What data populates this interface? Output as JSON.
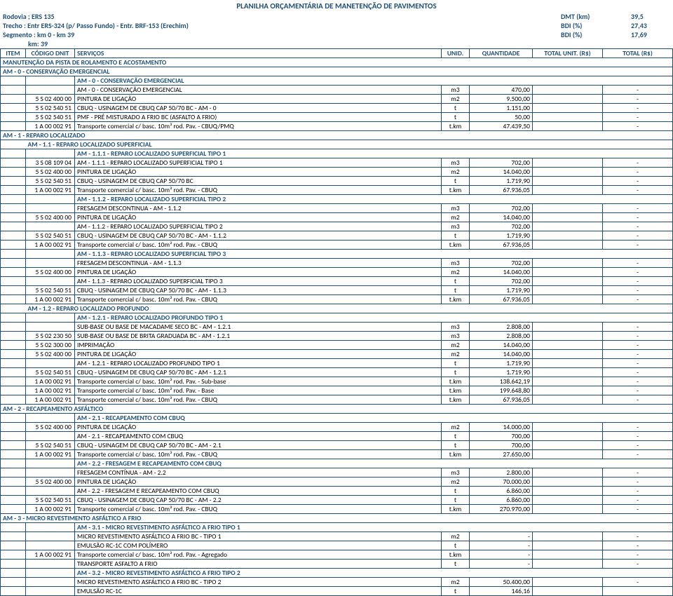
{
  "title": "PLANILHA ORÇAMENTÁRIA DE MANETENÇÃO DE PAVIMENTOS",
  "header": {
    "rodovia": "Rodovia ; ERS 135",
    "trecho": "Trecho : Entr ERS-324 (p/ Passo Fundo) - Entr. BRF-153 (Erechim)",
    "segmento": "Segmento : km 0 - km 39",
    "km": "km: 39",
    "dmt_lbl": "DMT (km)",
    "dmt_val": "39,5",
    "bdi1_lbl": "BDI (%)",
    "bdi1_val": "27,43",
    "bdi2_lbl": "BDI (%)",
    "bdi2_val": "17,69"
  },
  "th": {
    "item": "ITEM",
    "codigo": "CÓDIGO DNIT",
    "serv": "SERVIÇOS",
    "unid": "UNID.",
    "qty": "QUANTIDADE",
    "unit": "TOTAL UNIT. (R$)",
    "total": "TOTAL (R$)"
  },
  "rows": [
    {
      "t": "sec",
      "span": 7,
      "txt": "MANUTENÇÃO DA PISTA DE ROLAMENTO E ACOSTAMENTO"
    },
    {
      "t": "sec",
      "span": 7,
      "txt": "AM - 0 - CONSERVAÇÃO EMERGENCIAL"
    },
    {
      "t": "sub",
      "txt": "AM - 0 - CONSERVAÇÃO EMERGENCIAL"
    },
    {
      "t": "d",
      "code": "",
      "serv": "AM - 0 - CONSERVAÇÃO EMERGENCIAL",
      "u": "m3",
      "q": "470,00",
      "ut": "",
      "tot": "-"
    },
    {
      "t": "d",
      "code": "5 S 02 400 00",
      "serv": "PINTURA DE LIGAÇÃO",
      "u": "m2",
      "q": "9.500,00",
      "ut": "",
      "tot": "-"
    },
    {
      "t": "d",
      "code": "5 S 02 540 51",
      "serv": "CBUQ - USINAGEM DE CBUQ CAP 50/70 BC - AM - 0",
      "u": "t",
      "q": "1.151,00",
      "ut": "",
      "tot": "-"
    },
    {
      "t": "d",
      "code": "5 S 02 540 51",
      "serv": "PMF - PRÉ MISTURADO A FRIO BC (ASFALTO A FRIO)",
      "u": "t",
      "q": "50,00",
      "ut": "",
      "tot": "-"
    },
    {
      "t": "d",
      "code": "1 A 00 002 91",
      "serv": "Transporte comercial c/ basc. 10m³ rod. Pav. - CBUQ/PMQ",
      "u": "t.km",
      "q": "47.439,50",
      "ut": "",
      "tot": "-"
    },
    {
      "t": "sec",
      "span": 7,
      "txt": "AM - 1 - REPARO LOCALIZADO"
    },
    {
      "t": "sub2",
      "txt": "AM - 1.1 - REPARO LOCALIZADO SUPERFICIAL"
    },
    {
      "t": "sub",
      "txt": "AM - 1.1.1 - REPARO LOCALIZADO SUPERFICIAL TIPO 1"
    },
    {
      "t": "d",
      "code": "3 S 08 109 04",
      "serv": "AM - 1.1.1 - REPARO LOCALIZADO SUPERFICIAL TIPO 1",
      "u": "m3",
      "q": "702,00",
      "ut": "",
      "tot": "-"
    },
    {
      "t": "d",
      "code": "5 S 02 400 00",
      "serv": "PINTURA DE LIGAÇÃO",
      "u": "m2",
      "q": "14.040,00",
      "ut": "",
      "tot": "-"
    },
    {
      "t": "d",
      "code": "5 S 02 540 51",
      "serv": "CBUQ - USINAGEM DE CBUQ CAP 50/70 BC",
      "u": "t",
      "q": "1.719,90",
      "ut": "",
      "tot": "-"
    },
    {
      "t": "d",
      "code": "1 A 00 002 91",
      "serv": "Transporte comercial c/ basc. 10m³ rod. Pav. - CBUQ",
      "u": "t.km",
      "q": "67.936,05",
      "ut": "",
      "tot": "-"
    },
    {
      "t": "sub",
      "txt": "AM - 1.1.2 - REPARO LOCALIZADO SUPERFICIAL TIPO 2"
    },
    {
      "t": "d",
      "code": "",
      "serv": "FRESAGEM DESCONTINUA - AM - 1.1.2",
      "u": "m3",
      "q": "702,00",
      "ut": "",
      "tot": "-"
    },
    {
      "t": "d",
      "code": "5 S 02 400 00",
      "serv": "PINTURA DE LIGAÇÃO",
      "u": "m2",
      "q": "14.040,00",
      "ut": "",
      "tot": "-"
    },
    {
      "t": "d",
      "code": "",
      "serv": "AM - 1.1.2 - REPARO LOCALIZADO SUPERFICIAL TIPO 2",
      "u": "m3",
      "q": "702,00",
      "ut": "",
      "tot": "-"
    },
    {
      "t": "d",
      "code": "5 S 02 540 51",
      "serv": "CBUQ - USINAGEM DE CBUQ CAP 50/70 BC - AM - 1.1.2",
      "u": "t",
      "q": "1.719,90",
      "ut": "",
      "tot": "-"
    },
    {
      "t": "d",
      "code": "1 A 00 002 91",
      "serv": "Transporte comercial c/ basc. 10m³ rod. Pav. - CBUQ",
      "u": "t.km",
      "q": "67.936,05",
      "ut": "",
      "tot": "-"
    },
    {
      "t": "sub",
      "txt": "AM - 1.1.3 - REPARO LOCALIZADO SUPERFICIAL TIPO 3"
    },
    {
      "t": "d",
      "code": "",
      "serv": "FRESAGEM DESCONTINUA - AM - 1.1.3",
      "u": "m3",
      "q": "702,00",
      "ut": "",
      "tot": "-"
    },
    {
      "t": "d",
      "code": "5 S 02 400 00",
      "serv": "PINTURA DE LIGAÇÃO",
      "u": "m2",
      "q": "14.040,00",
      "ut": "",
      "tot": "-"
    },
    {
      "t": "d",
      "code": "",
      "serv": "AM - 1.1.3 - REPARO LOCALIZADO SUPERFICIAL TIPO 3",
      "u": "t",
      "q": "702,00",
      "ut": "",
      "tot": "-"
    },
    {
      "t": "d",
      "code": "5 S 02 540 51",
      "serv": "CBUQ - USINAGEM DE CBUQ CAP 50/70 BC - AM - 1.1.3",
      "u": "t",
      "q": "1.719,90",
      "ut": "",
      "tot": "-"
    },
    {
      "t": "d",
      "code": "1 A 00 002 91",
      "serv": "Transporte comercial c/ basc. 10m³ rod. Pav. - CBUQ",
      "u": "t.km",
      "q": "67.936,05",
      "ut": "",
      "tot": "-"
    },
    {
      "t": "sub2",
      "txt": "AM - 1.2 - REPARO LOCALIZADO PROFUNDO"
    },
    {
      "t": "sub",
      "txt": "AM - 1.2.1 - REPARO LOCALIZADO PROFUNDO TIPO 1"
    },
    {
      "t": "d",
      "code": "",
      "serv": "SUB-BASE OU BASE DE MACADAME SECO BC - AM - 1.2.1",
      "u": "m3",
      "q": "2.808,00",
      "ut": "",
      "tot": "-"
    },
    {
      "t": "d",
      "code": "5 S 02 230 50",
      "serv": "SUB-BASE OU BASE DE BRITA GRADUADA BC - AM - 1.2.1",
      "u": "m3",
      "q": "2.808,00",
      "ut": "",
      "tot": "-"
    },
    {
      "t": "d",
      "code": "5 S 02 300 00",
      "serv": "IMPRIMAÇÃO",
      "u": "m2",
      "q": "14.040,00",
      "ut": "",
      "tot": "-"
    },
    {
      "t": "d",
      "code": "5 S 02 400 00",
      "serv": "PINTURA DE LIGAÇÃO",
      "u": "m2",
      "q": "14.040,00",
      "ut": "",
      "tot": "-"
    },
    {
      "t": "d",
      "code": "",
      "serv": "AM - 1.2.1 - REPARO LOCALIZADO PROFUNDO TIPO 1",
      "u": "t",
      "q": "1.719,90",
      "ut": "",
      "tot": "-"
    },
    {
      "t": "d",
      "code": "5 S 02 540 51",
      "serv": "CBUQ - USINAGEM DE CBUQ CAP 50/70 BC - AM - 1.2.1",
      "u": "t",
      "q": "1.719,90",
      "ut": "",
      "tot": "-"
    },
    {
      "t": "d",
      "code": "1 A 00 002 91",
      "serv": "Transporte comercial c/ basc. 10m³ rod. Pav. - Sub-base",
      "u": "t.km",
      "q": "138.642,19",
      "ut": "",
      "tot": "-"
    },
    {
      "t": "d",
      "code": "1 A 00 002 91",
      "serv": "Transporte comercial c/ basc. 10m³ rod. Pav. - Base",
      "u": "t.km",
      "q": "199.648,80",
      "ut": "",
      "tot": "-"
    },
    {
      "t": "d",
      "code": "1 A 00 002 91",
      "serv": "Transporte comercial c/ basc. 10m³ rod. Pav. - CBUQ",
      "u": "t.km",
      "q": "67.936,05",
      "ut": "",
      "tot": "-"
    },
    {
      "t": "sec",
      "span": 7,
      "txt": "AM - 2 - RECAPEAMENTO ASFÁLTICO"
    },
    {
      "t": "sub",
      "txt": "AM - 2.1 - RECAPEAMENTO COM CBUQ"
    },
    {
      "t": "d",
      "code": "5 S 02 400 00",
      "serv": "PINTURA DE LIGAÇÃO",
      "u": "m2",
      "q": "14.000,00",
      "ut": "",
      "tot": "-"
    },
    {
      "t": "d",
      "code": "",
      "serv": "AM - 2.1 - RECAPEAMENTO COM CBUQ",
      "u": "t",
      "q": "700,00",
      "ut": "",
      "tot": "-"
    },
    {
      "t": "d",
      "code": "5 S 02 540 51",
      "serv": "CBUQ - USINAGEM DE CBUQ CAP 50/70 BC - AM - 2.1",
      "u": "t",
      "q": "700,00",
      "ut": "",
      "tot": "-"
    },
    {
      "t": "d",
      "code": "1 A 00 002 91",
      "serv": "Transporte comercial c/ basc. 10m³ rod. Pav. - CBUQ",
      "u": "t.km",
      "q": "27.650,00",
      "ut": "",
      "tot": "-"
    },
    {
      "t": "sub",
      "txt": "AM - 2.2 - FRESAGEM E RECAPEAMENTO COM CBUQ"
    },
    {
      "t": "d",
      "code": "",
      "serv": "FRESAGEM CONTÍNUA - AM - 2.2",
      "u": "m3",
      "q": "2.800,00",
      "ut": "",
      "tot": "-"
    },
    {
      "t": "d",
      "code": "5 S 02 400 00",
      "serv": "PINTURA DE LIGAÇÃO",
      "u": "m2",
      "q": "70.000,00",
      "ut": "",
      "tot": "-"
    },
    {
      "t": "d",
      "code": "",
      "serv": "AM - 2.2 - FRESAGEM E RECAPEAMENTO COM CBUQ",
      "u": "t",
      "q": "6.860,00",
      "ut": "",
      "tot": "-"
    },
    {
      "t": "d",
      "code": "5 S 02 540 51",
      "serv": "CBUQ - USINAGEM DE CBUQ CAP 50/70 BC - AM - 2.2",
      "u": "t",
      "q": "6.860,00",
      "ut": "",
      "tot": "-"
    },
    {
      "t": "d",
      "code": "1 A 00 002 91",
      "serv": "Transporte comercial c/ basc. 10m³ rod. Pav. - CBUQ",
      "u": "t.km",
      "q": "270.970,00",
      "ut": "",
      "tot": "-"
    },
    {
      "t": "sec",
      "span": 7,
      "txt": "AM - 3 - MICRO REVESTIMENTO ASFÁLTICO A FRIO"
    },
    {
      "t": "sub",
      "txt": "AM - 3.1 - MICRO REVESTIMENTO ASFÁLTICO A FRIO TIPO 1"
    },
    {
      "t": "d",
      "code": "",
      "serv": "MICRO REVESTIMENTO ASFÁLTICO A FRIO BC - TIPO 1",
      "u": "m2",
      "q": "-",
      "ut": "",
      "tot": "-"
    },
    {
      "t": "d",
      "code": "",
      "serv": "EMULSÃO RC-1C COM POLÍMERO",
      "u": "t",
      "q": "-",
      "ut": "",
      "tot": "-"
    },
    {
      "t": "d",
      "code": "1 A 00 002 91",
      "serv": "Transporte comercial c/ basc. 10m³ rod. Pav. - Agregado",
      "u": "t.km",
      "q": "-",
      "ut": "",
      "tot": "-"
    },
    {
      "t": "d",
      "code": "",
      "serv": "TRANSPORTE ASFALTO A FRIO",
      "u": "t",
      "q": "-",
      "ut": "",
      "tot": "-"
    },
    {
      "t": "sub",
      "txt": "AM - 3.2 - MICRO REVESTIMENTO ASFÁLTICO A FRIO TIPO 2"
    },
    {
      "t": "d",
      "code": "",
      "serv": "MICRO REVESTIMENTO ASFÁLTICO A FRIO BC - TIPO 2",
      "u": "m2",
      "q": "50.400,00",
      "ut": "",
      "tot": "-"
    },
    {
      "t": "d",
      "code": "",
      "serv": "EMULSÃO RC-1C",
      "u": "t",
      "q": "146,16",
      "ut": "",
      "tot": ""
    }
  ]
}
